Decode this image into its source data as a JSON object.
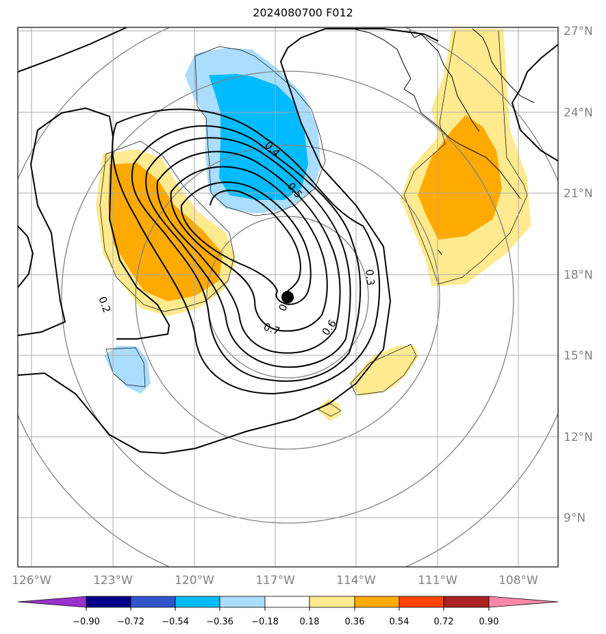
{
  "title": "2024080700 F012",
  "map": {
    "lon_labels": [
      "126°W",
      "123°W",
      "120°W",
      "117°W",
      "114°W",
      "111°W",
      "108°W"
    ],
    "lat_labels": [
      "27°N",
      "24°N",
      "21°N",
      "18°N",
      "15°N",
      "12°N",
      "9°N"
    ],
    "storm_center": {
      "lon": -116.5,
      "lat": 17.1
    }
  },
  "contour_labels": [
    "0.2",
    "0.3",
    "0.4",
    "0.5",
    "0.6",
    "0.7",
    "0.8"
  ],
  "colorbar": {
    "ticks": [
      "−0.90",
      "−0.72",
      "−0.54",
      "−0.36",
      "−0.18",
      "0.18",
      "0.36",
      "0.54",
      "0.72",
      "0.90"
    ],
    "colors": [
      "#9933cc",
      "#000088",
      "#3355cc",
      "#00bbff",
      "#aaddff",
      "#ffffff",
      "#ffea90",
      "#ffaa00",
      "#ff4400",
      "#aa2222",
      "#ff88aa"
    ]
  }
}
